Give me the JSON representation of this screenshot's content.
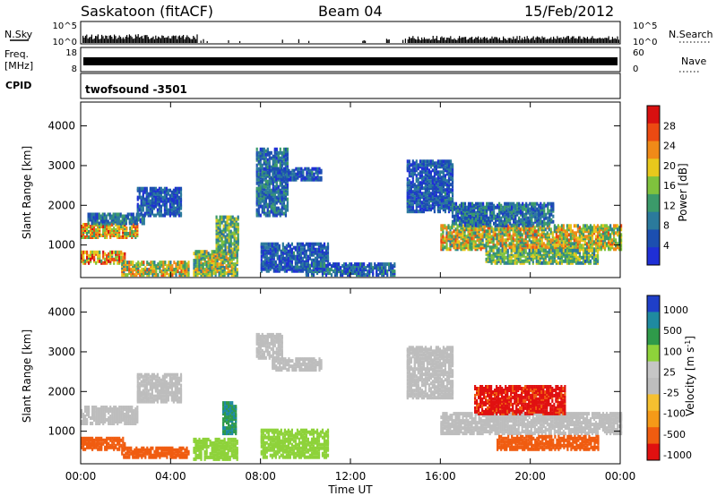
{
  "header": {
    "station": "Saskatoon (fitACF)",
    "beam": "Beam 04",
    "date": "15/Feb/2012"
  },
  "top_panels": {
    "nsky_label": "N.Sky",
    "nsearch_label": "N.Search",
    "freq_label_line1": "Freq.",
    "freq_label_line2": "[MHz]",
    "nave_label": "Nave",
    "cpid_label": "CPID",
    "cpid_value": "twofsound -3501",
    "nsky_ticks": [
      "10^5",
      "10^0"
    ],
    "nsearch_ticks": [
      "10^5",
      "10^0"
    ],
    "freq_ticks": [
      "18",
      "8"
    ],
    "nave_ticks": [
      "60",
      "0"
    ]
  },
  "colors": {
    "power_scale": [
      "#1f2fd6",
      "#1c4fb0",
      "#2b7a9c",
      "#3b9a6a",
      "#7fc23d",
      "#e8c81c",
      "#f08a18",
      "#ec4a12",
      "#d81010"
    ],
    "velocity_scale": [
      "#e01010",
      "#f05c10",
      "#f59a18",
      "#f5c030",
      "#bdbdbd",
      "#c6c6c6",
      "#8ed23a",
      "#2f9a4a",
      "#1f8aa0",
      "#1f3fc8"
    ]
  },
  "chart_data": [
    {
      "type": "heatmap",
      "title": "Power",
      "xlabel": "Time UT",
      "ylabel": "Slant Range [km]",
      "x_ticks": [
        "00:00",
        "04:00",
        "08:00",
        "12:00",
        "16:00",
        "20:00",
        "00:00"
      ],
      "y_ticks": [
        "1000",
        "2000",
        "3000",
        "4000"
      ],
      "ylim": [
        180,
        4600
      ],
      "colorbar_label": "Power [dB]",
      "colorbar_ticks": [
        "4",
        "8",
        "12",
        "16",
        "20",
        "24",
        "28"
      ],
      "colorbar_range": [
        0,
        32
      ],
      "regions": [
        {
          "t0": 0.0,
          "t1": 2.5,
          "r0": 1150,
          "r1": 1500,
          "v": 20
        },
        {
          "t0": 0.3,
          "t1": 2.8,
          "r0": 1500,
          "r1": 1750,
          "v": 8
        },
        {
          "t0": 2.5,
          "t1": 4.5,
          "r0": 1700,
          "r1": 2400,
          "v": 6
        },
        {
          "t0": 0.0,
          "t1": 2.0,
          "r0": 500,
          "r1": 800,
          "v": 22
        },
        {
          "t0": 1.8,
          "t1": 4.8,
          "r0": 200,
          "r1": 550,
          "v": 18
        },
        {
          "t0": 5.0,
          "t1": 7.0,
          "r0": 200,
          "r1": 800,
          "v": 16
        },
        {
          "t0": 6.0,
          "t1": 7.0,
          "r0": 800,
          "r1": 1700,
          "v": 14
        },
        {
          "t0": 7.8,
          "t1": 9.2,
          "r0": 1700,
          "r1": 3400,
          "v": 8
        },
        {
          "t0": 8.5,
          "t1": 10.7,
          "r0": 2600,
          "r1": 2900,
          "v": 6
        },
        {
          "t0": 8.0,
          "t1": 11.0,
          "r0": 300,
          "r1": 1000,
          "v": 6
        },
        {
          "t0": 10.0,
          "t1": 14.0,
          "r0": 200,
          "r1": 500,
          "v": 7
        },
        {
          "t0": 14.5,
          "t1": 16.5,
          "r0": 1800,
          "r1": 3100,
          "v": 6
        },
        {
          "t0": 16.0,
          "t1": 24.0,
          "r0": 850,
          "r1": 1450,
          "v": 18
        },
        {
          "t0": 16.5,
          "t1": 21.0,
          "r0": 1450,
          "r1": 2000,
          "v": 8
        },
        {
          "t0": 18.0,
          "t1": 23.0,
          "r0": 500,
          "r1": 850,
          "v": 14
        }
      ]
    },
    {
      "type": "heatmap",
      "title": "Velocity",
      "xlabel": "Time UT",
      "ylabel": "Slant Range [km]",
      "x_ticks": [
        "00:00",
        "04:00",
        "08:00",
        "12:00",
        "16:00",
        "20:00",
        "00:00"
      ],
      "y_ticks": [
        "1000",
        "2000",
        "3000",
        "4000"
      ],
      "ylim": [
        180,
        4600
      ],
      "colorbar_label": "Velocity [m s^-1]",
      "colorbar_ticks": [
        "1000",
        "500",
        "100",
        "25",
        "-25",
        "-100",
        "-500",
        "-1000"
      ],
      "regions": [
        {
          "t0": 0.0,
          "t1": 2.5,
          "r0": 1150,
          "r1": 1600,
          "v": 0
        },
        {
          "t0": 2.5,
          "t1": 4.5,
          "r0": 1700,
          "r1": 2400,
          "v": 0
        },
        {
          "t0": 0.0,
          "t1": 2.0,
          "r0": 500,
          "r1": 800,
          "v": -150
        },
        {
          "t0": 1.8,
          "t1": 4.8,
          "r0": 300,
          "r1": 550,
          "v": -150
        },
        {
          "t0": 5.0,
          "t1": 7.0,
          "r0": 250,
          "r1": 750,
          "v": 60
        },
        {
          "t0": 6.3,
          "t1": 6.9,
          "r0": 900,
          "r1": 1700,
          "v": 300
        },
        {
          "t0": 7.8,
          "t1": 9.0,
          "r0": 2800,
          "r1": 3400,
          "v": 0
        },
        {
          "t0": 8.5,
          "t1": 10.7,
          "r0": 2500,
          "r1": 2800,
          "v": 0
        },
        {
          "t0": 8.0,
          "t1": 11.0,
          "r0": 300,
          "r1": 1000,
          "v": 40
        },
        {
          "t0": 14.5,
          "t1": 16.5,
          "r0": 1800,
          "r1": 3100,
          "v": 0
        },
        {
          "t0": 16.0,
          "t1": 24.0,
          "r0": 900,
          "r1": 1400,
          "v": 0
        },
        {
          "t0": 17.5,
          "t1": 21.5,
          "r0": 1400,
          "r1": 2100,
          "v": -600
        },
        {
          "t0": 18.5,
          "t1": 23.0,
          "r0": 500,
          "r1": 850,
          "v": -300
        }
      ]
    }
  ]
}
